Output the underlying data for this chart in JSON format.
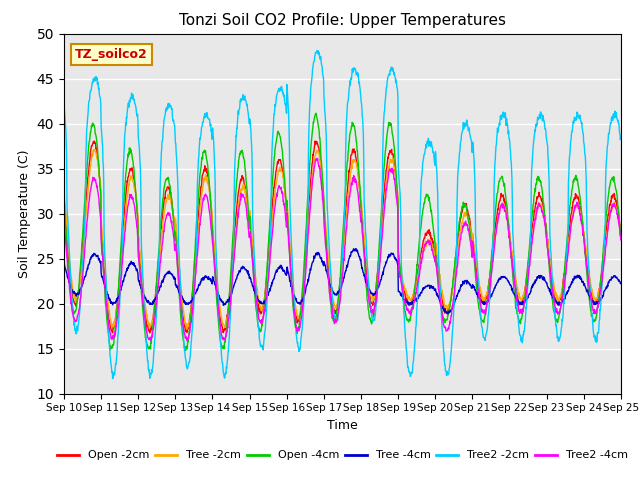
{
  "title": "Tonzi Soil CO2 Profile: Upper Temperatures",
  "xlabel": "Time",
  "ylabel": "Soil Temperature (C)",
  "ylim": [
    10,
    50
  ],
  "x_tick_labels": [
    "Sep 10",
    "Sep 11",
    "Sep 12",
    "Sep 13",
    "Sep 14",
    "Sep 15",
    "Sep 16",
    "Sep 17",
    "Sep 18",
    "Sep 19",
    "Sep 20",
    "Sep 21",
    "Sep 22",
    "Sep 23",
    "Sep 24",
    "Sep 25"
  ],
  "yticks": [
    10,
    15,
    20,
    25,
    30,
    35,
    40,
    45,
    50
  ],
  "legend_label": "TZ_soilco2",
  "series_labels": [
    "Open -2cm",
    "Tree -2cm",
    "Open -4cm",
    "Tree -4cm",
    "Tree2 -2cm",
    "Tree2 -4cm"
  ],
  "series_colors": [
    "#ff0000",
    "#ffaa00",
    "#00cc00",
    "#0000cc",
    "#00ccff",
    "#ff00ff"
  ],
  "background_color": "#e8e8e8",
  "fig_background": "#ffffff",
  "n_days": 15,
  "points_per_day": 100
}
